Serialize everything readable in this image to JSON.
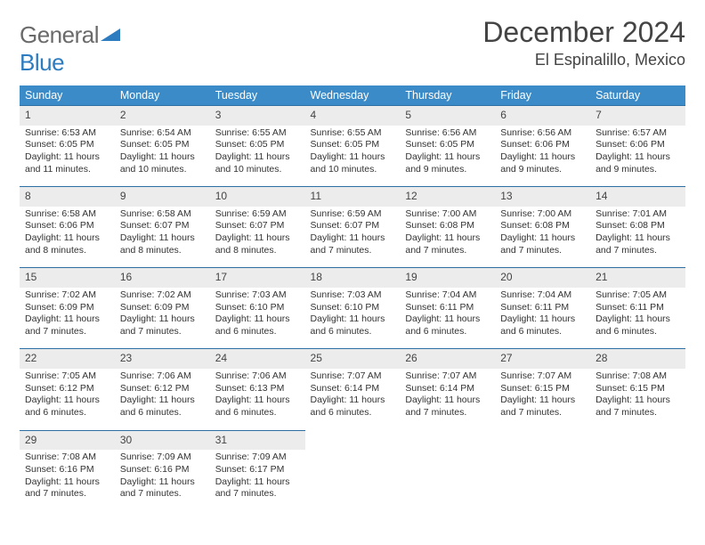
{
  "logo": {
    "word1": "General",
    "word2": "Blue"
  },
  "title": "December 2024",
  "location": "El Espinalillo, Mexico",
  "colors": {
    "header_bg": "#3b8bc8",
    "header_text": "#ffffff",
    "daynum_bg": "#ececec",
    "row_border": "#2d6fa3",
    "text": "#333333",
    "logo_gray": "#6a6a6a",
    "logo_blue": "#2d7cc0",
    "page_bg": "#ffffff"
  },
  "font": {
    "title_size": 32,
    "location_size": 18,
    "header_size": 12.5,
    "cell_size": 10.5
  },
  "weekdays": [
    "Sunday",
    "Monday",
    "Tuesday",
    "Wednesday",
    "Thursday",
    "Friday",
    "Saturday"
  ],
  "weeks": [
    {
      "nums": [
        "1",
        "2",
        "3",
        "4",
        "5",
        "6",
        "7"
      ],
      "cells": [
        {
          "sunrise": "Sunrise: 6:53 AM",
          "sunset": "Sunset: 6:05 PM",
          "day1": "Daylight: 11 hours",
          "day2": "and 11 minutes."
        },
        {
          "sunrise": "Sunrise: 6:54 AM",
          "sunset": "Sunset: 6:05 PM",
          "day1": "Daylight: 11 hours",
          "day2": "and 10 minutes."
        },
        {
          "sunrise": "Sunrise: 6:55 AM",
          "sunset": "Sunset: 6:05 PM",
          "day1": "Daylight: 11 hours",
          "day2": "and 10 minutes."
        },
        {
          "sunrise": "Sunrise: 6:55 AM",
          "sunset": "Sunset: 6:05 PM",
          "day1": "Daylight: 11 hours",
          "day2": "and 10 minutes."
        },
        {
          "sunrise": "Sunrise: 6:56 AM",
          "sunset": "Sunset: 6:05 PM",
          "day1": "Daylight: 11 hours",
          "day2": "and 9 minutes."
        },
        {
          "sunrise": "Sunrise: 6:56 AM",
          "sunset": "Sunset: 6:06 PM",
          "day1": "Daylight: 11 hours",
          "day2": "and 9 minutes."
        },
        {
          "sunrise": "Sunrise: 6:57 AM",
          "sunset": "Sunset: 6:06 PM",
          "day1": "Daylight: 11 hours",
          "day2": "and 9 minutes."
        }
      ]
    },
    {
      "nums": [
        "8",
        "9",
        "10",
        "11",
        "12",
        "13",
        "14"
      ],
      "cells": [
        {
          "sunrise": "Sunrise: 6:58 AM",
          "sunset": "Sunset: 6:06 PM",
          "day1": "Daylight: 11 hours",
          "day2": "and 8 minutes."
        },
        {
          "sunrise": "Sunrise: 6:58 AM",
          "sunset": "Sunset: 6:07 PM",
          "day1": "Daylight: 11 hours",
          "day2": "and 8 minutes."
        },
        {
          "sunrise": "Sunrise: 6:59 AM",
          "sunset": "Sunset: 6:07 PM",
          "day1": "Daylight: 11 hours",
          "day2": "and 8 minutes."
        },
        {
          "sunrise": "Sunrise: 6:59 AM",
          "sunset": "Sunset: 6:07 PM",
          "day1": "Daylight: 11 hours",
          "day2": "and 7 minutes."
        },
        {
          "sunrise": "Sunrise: 7:00 AM",
          "sunset": "Sunset: 6:08 PM",
          "day1": "Daylight: 11 hours",
          "day2": "and 7 minutes."
        },
        {
          "sunrise": "Sunrise: 7:00 AM",
          "sunset": "Sunset: 6:08 PM",
          "day1": "Daylight: 11 hours",
          "day2": "and 7 minutes."
        },
        {
          "sunrise": "Sunrise: 7:01 AM",
          "sunset": "Sunset: 6:08 PM",
          "day1": "Daylight: 11 hours",
          "day2": "and 7 minutes."
        }
      ]
    },
    {
      "nums": [
        "15",
        "16",
        "17",
        "18",
        "19",
        "20",
        "21"
      ],
      "cells": [
        {
          "sunrise": "Sunrise: 7:02 AM",
          "sunset": "Sunset: 6:09 PM",
          "day1": "Daylight: 11 hours",
          "day2": "and 7 minutes."
        },
        {
          "sunrise": "Sunrise: 7:02 AM",
          "sunset": "Sunset: 6:09 PM",
          "day1": "Daylight: 11 hours",
          "day2": "and 7 minutes."
        },
        {
          "sunrise": "Sunrise: 7:03 AM",
          "sunset": "Sunset: 6:10 PM",
          "day1": "Daylight: 11 hours",
          "day2": "and 6 minutes."
        },
        {
          "sunrise": "Sunrise: 7:03 AM",
          "sunset": "Sunset: 6:10 PM",
          "day1": "Daylight: 11 hours",
          "day2": "and 6 minutes."
        },
        {
          "sunrise": "Sunrise: 7:04 AM",
          "sunset": "Sunset: 6:11 PM",
          "day1": "Daylight: 11 hours",
          "day2": "and 6 minutes."
        },
        {
          "sunrise": "Sunrise: 7:04 AM",
          "sunset": "Sunset: 6:11 PM",
          "day1": "Daylight: 11 hours",
          "day2": "and 6 minutes."
        },
        {
          "sunrise": "Sunrise: 7:05 AM",
          "sunset": "Sunset: 6:11 PM",
          "day1": "Daylight: 11 hours",
          "day2": "and 6 minutes."
        }
      ]
    },
    {
      "nums": [
        "22",
        "23",
        "24",
        "25",
        "26",
        "27",
        "28"
      ],
      "cells": [
        {
          "sunrise": "Sunrise: 7:05 AM",
          "sunset": "Sunset: 6:12 PM",
          "day1": "Daylight: 11 hours",
          "day2": "and 6 minutes."
        },
        {
          "sunrise": "Sunrise: 7:06 AM",
          "sunset": "Sunset: 6:12 PM",
          "day1": "Daylight: 11 hours",
          "day2": "and 6 minutes."
        },
        {
          "sunrise": "Sunrise: 7:06 AM",
          "sunset": "Sunset: 6:13 PM",
          "day1": "Daylight: 11 hours",
          "day2": "and 6 minutes."
        },
        {
          "sunrise": "Sunrise: 7:07 AM",
          "sunset": "Sunset: 6:14 PM",
          "day1": "Daylight: 11 hours",
          "day2": "and 6 minutes."
        },
        {
          "sunrise": "Sunrise: 7:07 AM",
          "sunset": "Sunset: 6:14 PM",
          "day1": "Daylight: 11 hours",
          "day2": "and 7 minutes."
        },
        {
          "sunrise": "Sunrise: 7:07 AM",
          "sunset": "Sunset: 6:15 PM",
          "day1": "Daylight: 11 hours",
          "day2": "and 7 minutes."
        },
        {
          "sunrise": "Sunrise: 7:08 AM",
          "sunset": "Sunset: 6:15 PM",
          "day1": "Daylight: 11 hours",
          "day2": "and 7 minutes."
        }
      ]
    },
    {
      "nums": [
        "29",
        "30",
        "31",
        "",
        "",
        "",
        ""
      ],
      "cells": [
        {
          "sunrise": "Sunrise: 7:08 AM",
          "sunset": "Sunset: 6:16 PM",
          "day1": "Daylight: 11 hours",
          "day2": "and 7 minutes."
        },
        {
          "sunrise": "Sunrise: 7:09 AM",
          "sunset": "Sunset: 6:16 PM",
          "day1": "Daylight: 11 hours",
          "day2": "and 7 minutes."
        },
        {
          "sunrise": "Sunrise: 7:09 AM",
          "sunset": "Sunset: 6:17 PM",
          "day1": "Daylight: 11 hours",
          "day2": "and 7 minutes."
        },
        null,
        null,
        null,
        null
      ]
    }
  ]
}
